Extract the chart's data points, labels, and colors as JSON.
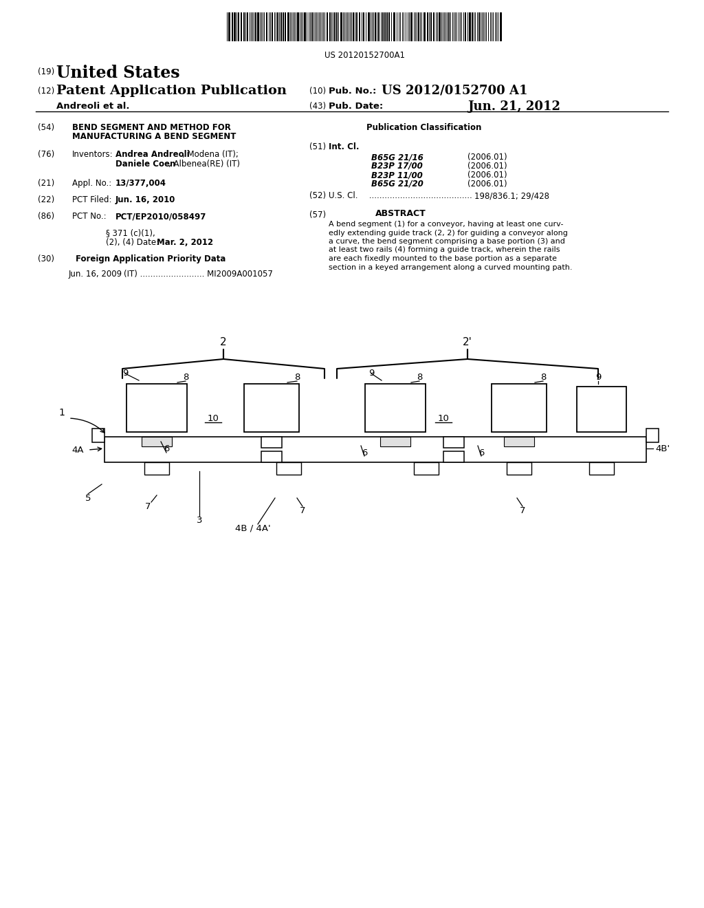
{
  "background_color": "#ffffff",
  "barcode_text": "US 20120152700A1",
  "int_cl": [
    [
      "B65G 21/16",
      "(2006.01)"
    ],
    [
      "B23P 17/00",
      "(2006.01)"
    ],
    [
      "B23P 11/00",
      "(2006.01)"
    ],
    [
      "B65G 21/20",
      "(2006.01)"
    ]
  ],
  "abstract_text": "A bend segment (1) for a conveyor, having at least one curv-\nedly extending guide track (2, 2) for guiding a conveyor along\na curve, the bend segment comprising a base portion (3) and\nat least two rails (4) forming a guide track, wherein the rails\nare each fixedly mounted to the base portion as a separate\nsection in a keyed arrangement along a curved mounting path."
}
